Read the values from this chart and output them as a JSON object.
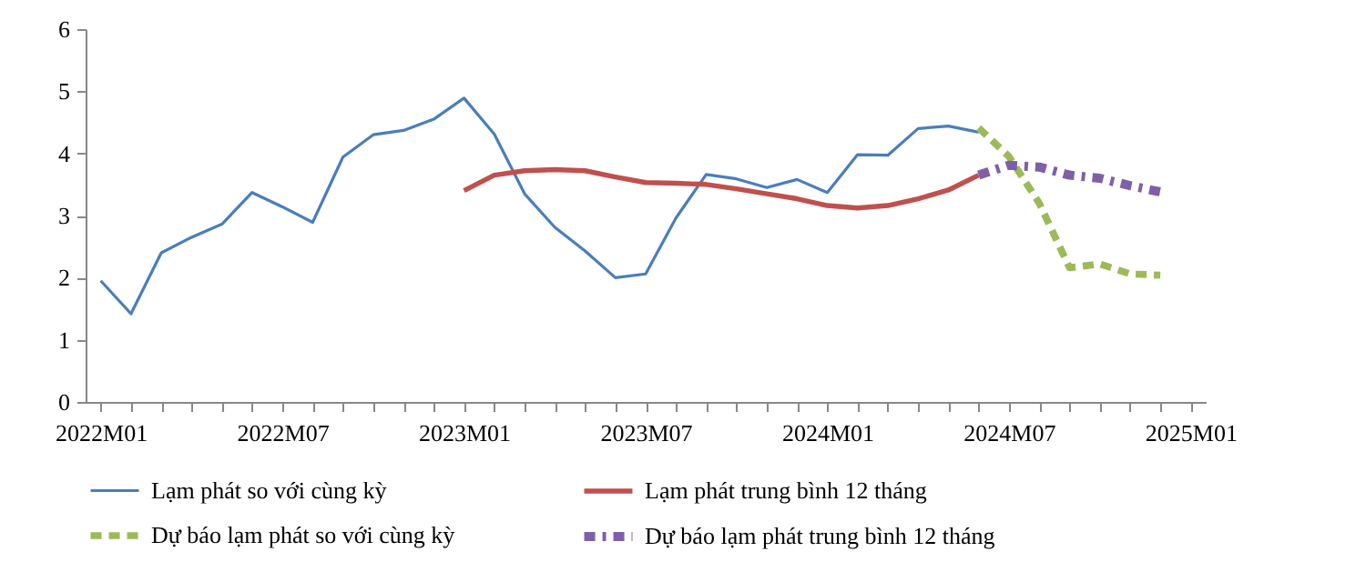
{
  "chart_data": {
    "type": "line",
    "categories": [
      "2022M01",
      null,
      null,
      null,
      null,
      null,
      "2022M07",
      null,
      null,
      null,
      null,
      null,
      "2023M01",
      null,
      null,
      null,
      null,
      null,
      "2023M07",
      null,
      null,
      null,
      null,
      null,
      "2024M01",
      null,
      null,
      null,
      null,
      null,
      "2024M07",
      null,
      null,
      null,
      null,
      null,
      "2025M01"
    ],
    "series": [
      {
        "name": "Lạm phát so với cùng kỳ",
        "color": "#4a7ebb",
        "line_style": "solid",
        "values": [
          1.95,
          1.42,
          2.4,
          2.65,
          2.86,
          3.37,
          3.14,
          2.89,
          3.94,
          4.3,
          4.37,
          4.55,
          4.89,
          4.31,
          3.35,
          2.81,
          2.43,
          2.0,
          2.06,
          2.96,
          3.66,
          3.59,
          3.45,
          3.58,
          3.37,
          3.98,
          3.97,
          4.4,
          4.44,
          4.34,
          null,
          null,
          null,
          null,
          null,
          null,
          null
        ]
      },
      {
        "name": "Lạm phát trung bình 12 tháng",
        "color": "#c0504d",
        "line_style": "solid",
        "values": [
          null,
          null,
          null,
          null,
          null,
          null,
          null,
          null,
          null,
          null,
          null,
          null,
          3.4,
          3.65,
          3.72,
          3.74,
          3.72,
          3.62,
          3.53,
          3.52,
          3.5,
          3.43,
          3.35,
          3.27,
          3.16,
          3.12,
          3.16,
          3.27,
          3.41,
          3.65,
          null,
          null,
          null,
          null,
          null,
          null,
          null
        ]
      },
      {
        "name": "Dự báo lạm phát so với cùng kỳ",
        "color": "#9bbb59",
        "line_style": "dashed",
        "values": [
          null,
          null,
          null,
          null,
          null,
          null,
          null,
          null,
          null,
          null,
          null,
          null,
          null,
          null,
          null,
          null,
          null,
          null,
          null,
          null,
          null,
          null,
          null,
          null,
          null,
          null,
          null,
          null,
          null,
          4.41,
          3.95,
          3.2,
          2.16,
          2.22,
          2.06,
          2.04,
          null
        ]
      },
      {
        "name": "Dự báo lạm phát trung bình 12 tháng",
        "color": "#7f5fa8",
        "line_style": "dotted",
        "values": [
          null,
          null,
          null,
          null,
          null,
          null,
          null,
          null,
          null,
          null,
          null,
          null,
          null,
          null,
          null,
          null,
          null,
          null,
          null,
          null,
          null,
          null,
          null,
          null,
          null,
          null,
          null,
          null,
          null,
          3.65,
          3.81,
          3.78,
          3.65,
          3.6,
          3.48,
          3.38,
          null
        ]
      }
    ],
    "ylim": [
      0,
      6
    ],
    "yticks": [
      0,
      1,
      2,
      3,
      4,
      5,
      6
    ],
    "grid": false,
    "legend": "bottom",
    "marker": "none"
  }
}
